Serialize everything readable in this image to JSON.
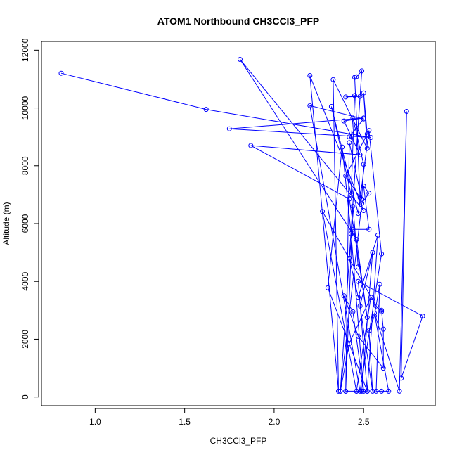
{
  "chart_data": {
    "type": "scatter",
    "title": "ATOM1 Northbound CH3CCl3_PFP",
    "xlabel": "CH3CCl3_PFP",
    "ylabel": "Altitude (m)",
    "xlim": [
      0.7,
      2.9
    ],
    "ylim": [
      -300,
      12300
    ],
    "x_ticks": [
      1.0,
      1.5,
      2.0,
      2.5
    ],
    "x_tick_labels": [
      "1.0",
      "1.5",
      "2.0",
      "2.5"
    ],
    "y_ticks": [
      0,
      2000,
      4000,
      6000,
      8000,
      10000,
      12000
    ],
    "y_tick_labels": [
      "0",
      "2000",
      "4000",
      "6000",
      "8000",
      "10000",
      "12000"
    ],
    "grid": false,
    "colors": {
      "series": "#0000ff",
      "axis": "#000000",
      "background": "#ffffff"
    },
    "series": [
      {
        "points": [
          [
            0.81,
            11200
          ],
          [
            1.62,
            9950
          ],
          [
            2.54,
            8980
          ],
          [
            1.75,
            9280
          ],
          [
            2.5,
            9650
          ],
          [
            2.39,
            9550
          ],
          [
            2.48,
            8380
          ],
          [
            1.87,
            8700
          ],
          [
            2.42,
            6850
          ],
          [
            2.52,
            2750
          ],
          [
            2.46,
            5450
          ],
          [
            1.81,
            11680
          ],
          [
            2.5,
            6450
          ],
          [
            2.2,
            11120
          ],
          [
            2.36,
            200
          ],
          [
            2.33,
            10980
          ],
          [
            2.52,
            8600
          ],
          [
            2.5,
            10520
          ],
          [
            2.52,
            9100
          ],
          [
            2.4,
            7650
          ],
          [
            2.48,
            6900
          ],
          [
            2.45,
            11060
          ],
          [
            2.46,
            11080
          ],
          [
            2.49,
            11280
          ],
          [
            2.37,
            200
          ],
          [
            2.48,
            10400
          ],
          [
            2.4,
            10380
          ],
          [
            2.45,
            10430
          ],
          [
            2.43,
            7000
          ],
          [
            2.32,
            10050
          ],
          [
            2.47,
            6350
          ],
          [
            2.53,
            9220
          ],
          [
            2.6,
            4950
          ],
          [
            2.48,
            200
          ],
          [
            2.2,
            10080
          ],
          [
            2.5,
            9620
          ],
          [
            2.42,
            9000
          ],
          [
            2.43,
            8920
          ],
          [
            2.44,
            9650
          ],
          [
            2.5,
            8050
          ],
          [
            2.49,
            6850
          ],
          [
            2.42,
            8800
          ],
          [
            2.4,
            200
          ],
          [
            2.46,
            200
          ],
          [
            2.27,
            6420
          ],
          [
            2.57,
            3150
          ],
          [
            2.6,
            2950
          ],
          [
            2.6,
            3000
          ],
          [
            2.61,
            2350
          ],
          [
            2.61,
            1000
          ],
          [
            2.47,
            2100
          ],
          [
            2.39,
            3500
          ],
          [
            2.44,
            2950
          ],
          [
            2.5,
            200
          ],
          [
            2.43,
            5650
          ],
          [
            2.38,
            8650
          ],
          [
            2.3,
            3780
          ],
          [
            2.52,
            200
          ],
          [
            2.58,
            5600
          ],
          [
            2.47,
            3450
          ],
          [
            2.42,
            4800
          ],
          [
            2.44,
            5800
          ],
          [
            2.53,
            5800
          ],
          [
            2.5,
            7300
          ],
          [
            2.53,
            7050
          ],
          [
            2.49,
            6700
          ],
          [
            2.37,
            200
          ],
          [
            2.42,
            1850
          ],
          [
            2.54,
            3450
          ],
          [
            2.46,
            200
          ],
          [
            2.49,
            200
          ],
          [
            2.55,
            5000
          ],
          [
            2.48,
            3150
          ],
          [
            2.55,
            200
          ],
          [
            2.53,
            2300
          ],
          [
            2.56,
            2800
          ],
          [
            2.59,
            3900
          ],
          [
            2.57,
            200
          ],
          [
            2.6,
            200
          ],
          [
            2.64,
            200
          ],
          [
            2.56,
            2900
          ],
          [
            2.7,
            200
          ],
          [
            2.74,
            9880
          ],
          [
            2.71,
            650
          ],
          [
            2.83,
            2800
          ],
          [
            2.47,
            4000
          ],
          [
            2.52,
            200
          ],
          [
            2.4,
            200
          ],
          [
            2.44,
            6600
          ],
          [
            2.47,
            4500
          ]
        ]
      }
    ]
  }
}
